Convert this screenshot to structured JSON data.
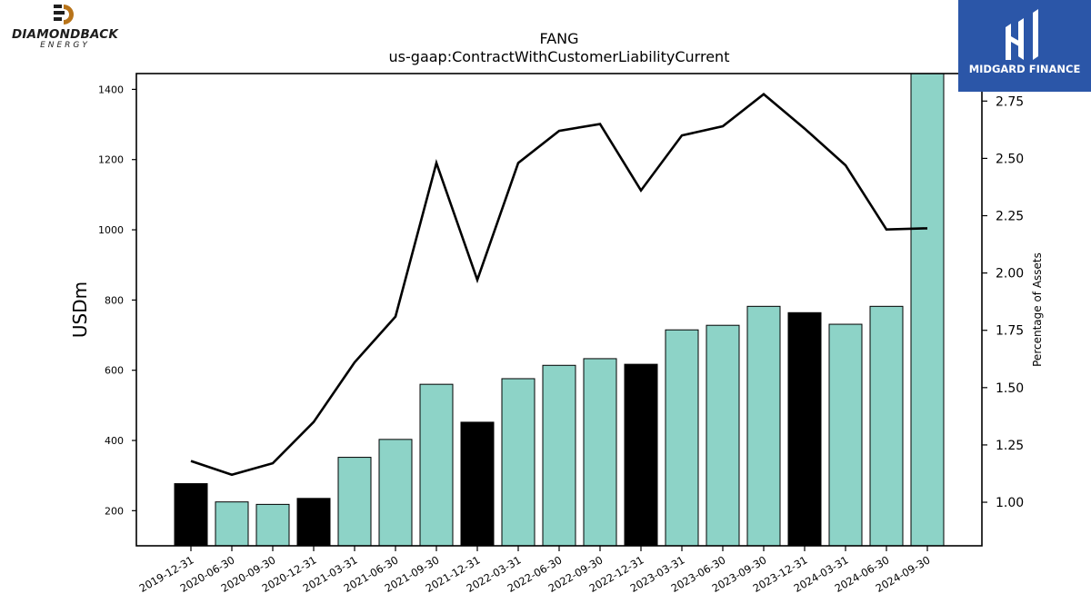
{
  "branding": {
    "left_logo": {
      "name": "DIAMONDBACK",
      "subtitle": "ENERGY",
      "icon": "diamondback-d-logo-icon"
    },
    "right_logo": {
      "name": "MIDGARD FINANCE",
      "icon": "midgard-m-logo-icon"
    }
  },
  "colors": {
    "bar_teal": "#8dd3c7",
    "bar_black": "#000000",
    "line": "#000000",
    "midgard_blue": "#2b56a8",
    "diamondback_orange": "#b8741a"
  },
  "chart_data": {
    "type": "bar",
    "title": "FANG",
    "subtitle": "us-gaap:ContractWithCustomerLiabilityCurrent",
    "ylabel": "USDm",
    "y2label": "Percentage of Assets",
    "ylim": [
      100,
      1445
    ],
    "y2lim": [
      0.81,
      2.87
    ],
    "yticks": [
      200,
      400,
      600,
      800,
      1000,
      1200,
      1400
    ],
    "y2ticks": [
      "1.00",
      "1.25",
      "1.50",
      "1.75",
      "2.00",
      "2.25",
      "2.50",
      "2.75"
    ],
    "grid": false,
    "categories": [
      "2019-12-31",
      "2020-06-30",
      "2020-09-30",
      "2020-12-31",
      "2021-03-31",
      "2021-06-30",
      "2021-09-30",
      "2021-12-31",
      "2022-03-31",
      "2022-06-30",
      "2022-09-30",
      "2022-12-31",
      "2023-03-31",
      "2023-06-30",
      "2023-09-30",
      "2023-12-31",
      "2024-03-31",
      "2024-06-30",
      "2024-09-30"
    ],
    "series": [
      {
        "type": "bar",
        "axis": "left",
        "values": [
          277,
          225,
          218,
          235,
          352,
          403,
          560,
          452,
          576,
          614,
          633,
          617,
          715,
          728,
          782,
          764,
          731,
          782,
          1445
        ],
        "year_end": [
          true,
          false,
          false,
          true,
          false,
          false,
          false,
          true,
          false,
          false,
          false,
          true,
          false,
          false,
          false,
          true,
          false,
          false,
          false
        ]
      },
      {
        "type": "line",
        "axis": "right",
        "values": [
          1.18,
          1.12,
          1.17,
          1.35,
          1.61,
          1.81,
          2.48,
          1.97,
          2.48,
          2.62,
          2.65,
          2.36,
          2.6,
          2.64,
          2.78,
          2.63,
          2.47,
          2.19,
          2.195
        ]
      }
    ]
  }
}
